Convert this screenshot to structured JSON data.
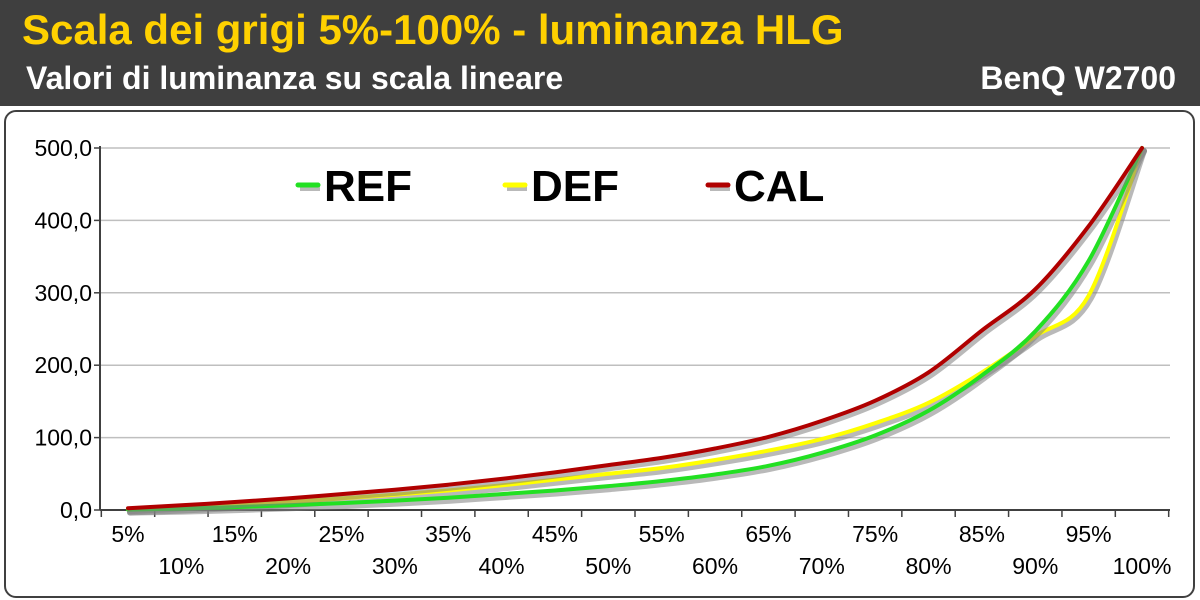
{
  "header": {
    "title": "Scala dei grigi 5%-100% - luminanza HLG",
    "subtitle": "Valori di luminanza su scala lineare",
    "brand": "BenQ W2700"
  },
  "chart_data": {
    "type": "line",
    "x": [
      "5%",
      "10%",
      "15%",
      "20%",
      "25%",
      "30%",
      "35%",
      "40%",
      "45%",
      "50%",
      "55%",
      "60%",
      "65%",
      "70%",
      "75%",
      "80%",
      "85%",
      "90%",
      "95%",
      "100%"
    ],
    "ylim": [
      0,
      500
    ],
    "yticks": [
      "0,0",
      "100,0",
      "200,0",
      "300,0",
      "400,0",
      "500,0"
    ],
    "grid": true,
    "legend_position": "top",
    "series": [
      {
        "name": "REF",
        "color": "#22e022",
        "values": [
          0.5,
          2,
          4,
          6.5,
          9.5,
          13,
          17,
          22,
          27,
          33,
          40,
          49,
          61,
          79,
          103,
          137,
          186,
          247,
          344,
          500
        ]
      },
      {
        "name": "DEF",
        "color": "#ffff00",
        "values": [
          0.8,
          3.5,
          7,
          11,
          16,
          21,
          27,
          34,
          42,
          50,
          58,
          69,
          82,
          98,
          120,
          148,
          190,
          240,
          296,
          500
        ]
      },
      {
        "name": "CAL",
        "color": "#b00000",
        "values": [
          2.5,
          6.5,
          11,
          16,
          22,
          28,
          35,
          43,
          52,
          62,
          72,
          85,
          101,
          123,
          151,
          190,
          248,
          305,
          392,
          500
        ]
      }
    ]
  }
}
